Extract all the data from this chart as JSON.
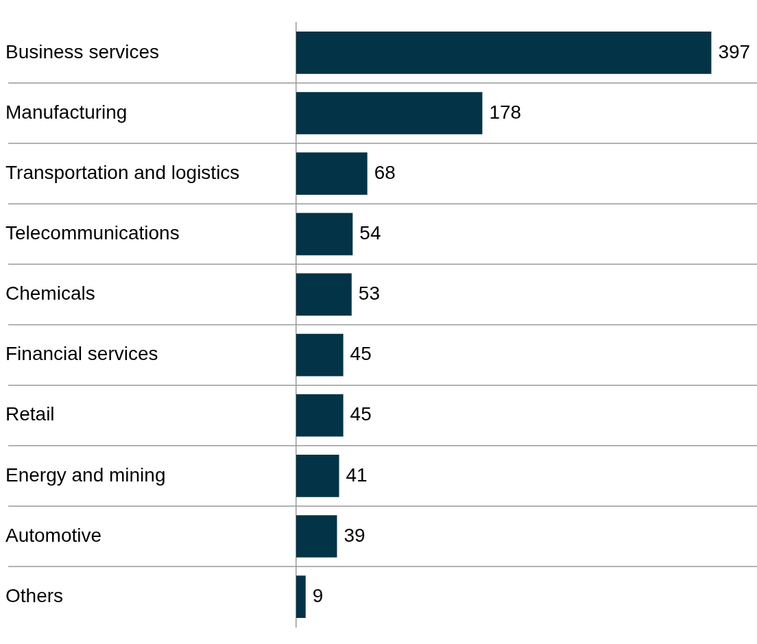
{
  "chart_data": {
    "type": "bar",
    "orientation": "horizontal",
    "categories": [
      "Business services",
      "Manufacturing",
      "Transportation and logistics",
      "Telecommunications",
      "Chemicals",
      "Financial services",
      "Retail",
      "Energy and mining",
      "Automotive",
      "Others"
    ],
    "values": [
      397,
      178,
      68,
      54,
      53,
      45,
      45,
      41,
      39,
      9
    ],
    "color": "#033346",
    "data_labels": true,
    "grid": "y",
    "legend": false
  }
}
